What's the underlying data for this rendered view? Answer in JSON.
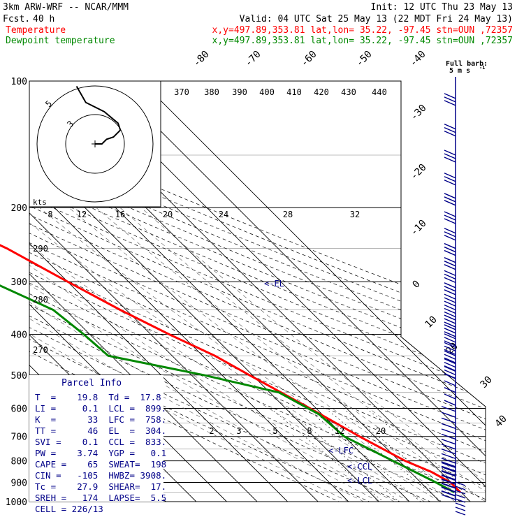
{
  "header": {
    "model": "3km ARW-WRF -- NCAR/MMM",
    "init": "Init: 12 UTC Thu 23 May 13",
    "fcst_label": "Fcst.",
    "fcst_hours": "40 h",
    "valid": "Valid: 04 UTC Sat 25 May 13 (22 MDT Fri 24 May 13)",
    "temp_label": "Temperature",
    "dew_label": "Dewpoint temperature",
    "location_info": "x,y=497.89,353.81    lat,lon= 35.22, -97.45   stn=OUN ,72357"
  },
  "colors": {
    "temperature": "#ff0000",
    "dewpoint": "#008800",
    "wind": "#000088",
    "lines": "#000000",
    "annot": "#000088"
  },
  "chart_data": {
    "type": "skewt",
    "pressure_axis_labels": [
      "100",
      "200",
      "300",
      "400",
      "500",
      "600",
      "700",
      "800",
      "900",
      "1000"
    ],
    "temperature_axis_labels": [
      "-80",
      "-70",
      "-60",
      "-50",
      "-40",
      "-30",
      "-20",
      "-10",
      "0",
      "10",
      "20",
      "30",
      "40"
    ],
    "theta_labels": [
      "370",
      "380",
      "390",
      "400",
      "410",
      "420",
      "430",
      "440"
    ],
    "theta_labels_left": [
      "290",
      "280",
      "270"
    ],
    "mixing_ratio_labels": [
      "2",
      "3",
      "5",
      "8",
      "12",
      "20"
    ],
    "hodograph": {
      "speed_labels": [
        "5",
        "3"
      ],
      "units": "kts",
      "ticks": [
        "8",
        "12",
        "16",
        "20",
        "24",
        "28",
        "32"
      ]
    },
    "annotations": {
      "el": "<-EL",
      "lfc": "<-LFC",
      "ccl": "<-CCL",
      "lcl": "<-LCL"
    },
    "wind_title": "Full barb:",
    "wind_units": "5 m s",
    "temperature_profile": [
      {
        "p": 100,
        "t": -58
      },
      {
        "p": 120,
        "t": -62
      },
      {
        "p": 150,
        "t": -65
      },
      {
        "p": 170,
        "t": -68
      },
      {
        "p": 200,
        "t": -64
      },
      {
        "p": 250,
        "t": -49
      },
      {
        "p": 300,
        "t": -40
      },
      {
        "p": 350,
        "t": -32
      },
      {
        "p": 400,
        "t": -24
      },
      {
        "p": 450,
        "t": -16
      },
      {
        "p": 500,
        "t": -11
      },
      {
        "p": 600,
        "t": -2
      },
      {
        "p": 700,
        "t": 5
      },
      {
        "p": 800,
        "t": 12
      },
      {
        "p": 850,
        "t": 17
      },
      {
        "p": 900,
        "t": 19.8
      },
      {
        "p": 950,
        "t": 19.8
      }
    ],
    "dewpoint_profile": [
      {
        "p": 100,
        "t": -85
      },
      {
        "p": 150,
        "t": -88
      },
      {
        "p": 200,
        "t": -90
      },
      {
        "p": 250,
        "t": -78
      },
      {
        "p": 300,
        "t": -65
      },
      {
        "p": 350,
        "t": -54
      },
      {
        "p": 400,
        "t": -52
      },
      {
        "p": 450,
        "t": -51
      },
      {
        "p": 500,
        "t": -26
      },
      {
        "p": 550,
        "t": -7
      },
      {
        "p": 620,
        "t": -1
      },
      {
        "p": 700,
        "t": 0
      },
      {
        "p": 800,
        "t": 8
      },
      {
        "p": 900,
        "t": 15
      },
      {
        "p": 950,
        "t": 17.8
      }
    ],
    "hodograph_path": [
      [
        0,
        0
      ],
      [
        3,
        0
      ],
      [
        5,
        2
      ],
      [
        8,
        3
      ],
      [
        11,
        6
      ],
      [
        10,
        9
      ],
      [
        4,
        14
      ],
      [
        -4,
        18
      ],
      [
        -8,
        25
      ]
    ]
  },
  "parcel_info": {
    "title": "Parcel Info",
    "rows": [
      "T  =    19.8  Td =  17.8",
      "LI =     0.1  LCL =  899.",
      "K  =      33  LFC =  758.",
      "TT =      46  EL  =  304.",
      "SVI =    0.1  CCL =  833.",
      "PW =    3.74  YGP =   0.1",
      "CAPE =    65  SWEAT=  198",
      "CIN =   -105  HWBZ= 3908.",
      "Tc =    27.9  SHEAR=  17.",
      "SREH =   174  LAPSE=  5.5",
      "CELL = 226/13"
    ]
  }
}
